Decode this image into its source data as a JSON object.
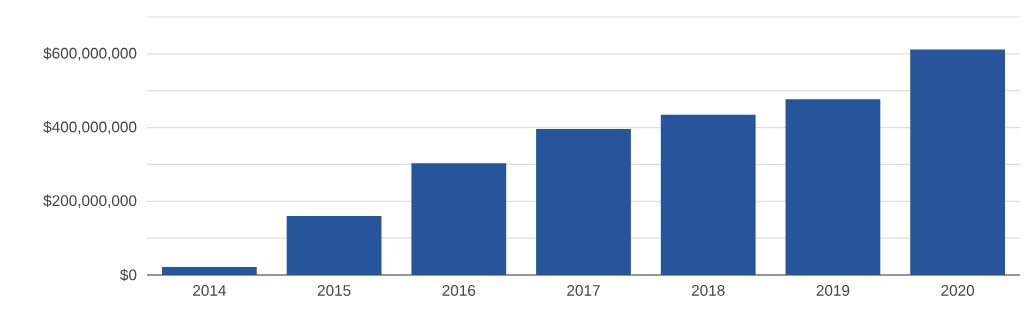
{
  "chart_data": {
    "type": "bar",
    "categories": [
      "2014",
      "2015",
      "2016",
      "2017",
      "2018",
      "2019",
      "2020"
    ],
    "values": [
      22000000,
      160000000,
      303000000,
      396000000,
      435000000,
      477000000,
      612000000
    ],
    "color": "#27559b",
    "ylim": [
      0,
      700000000
    ],
    "yticks": [
      {
        "value": 0,
        "label": "$0"
      },
      {
        "value": 100000000,
        "label": null
      },
      {
        "value": 200000000,
        "label": "$200,000,000"
      },
      {
        "value": 300000000,
        "label": null
      },
      {
        "value": 400000000,
        "label": "$400,000,000"
      },
      {
        "value": 500000000,
        "label": null
      },
      {
        "value": 600000000,
        "label": "$600,000,000"
      },
      {
        "value": 700000000,
        "label": null
      }
    ],
    "grid": "y"
  }
}
